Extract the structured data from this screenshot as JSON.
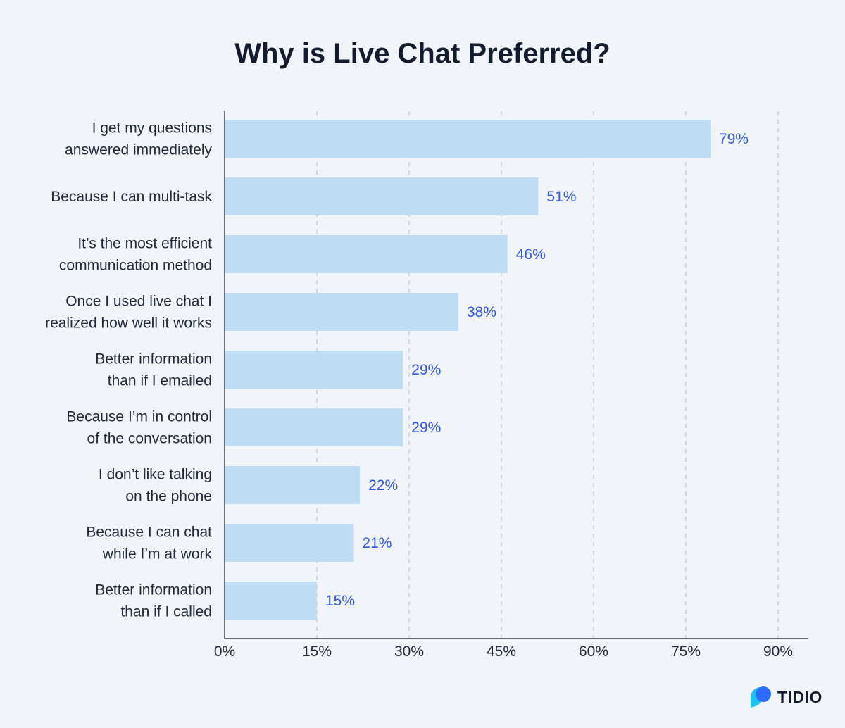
{
  "chart_data": {
    "type": "bar",
    "orientation": "horizontal",
    "title": "Why is Live Chat Preferred?",
    "categories": [
      [
        "I get my questions",
        "answered immediately"
      ],
      [
        "Because I can multi-task"
      ],
      [
        "It’s the most efficient",
        "communication method"
      ],
      [
        "Once I used live chat I",
        "realized how well it works"
      ],
      [
        "Better information",
        "than if I emailed"
      ],
      [
        "Because I’m in control",
        "of the conversation"
      ],
      [
        "I don’t like talking",
        "on the phone"
      ],
      [
        "Because I can chat",
        "while I’m at work"
      ],
      [
        "Better information",
        "than if I called"
      ]
    ],
    "values": [
      79,
      51,
      46,
      38,
      29,
      29,
      22,
      21,
      15
    ],
    "value_labels": [
      "79%",
      "51%",
      "46%",
      "38%",
      "29%",
      "29%",
      "22%",
      "21%",
      "15%"
    ],
    "xlim": [
      0,
      90
    ],
    "xticks": [
      0,
      15,
      30,
      45,
      60,
      75,
      90
    ],
    "xtick_labels": [
      "0%",
      "15%",
      "30%",
      "45%",
      "60%",
      "75%",
      "90%"
    ],
    "grid": "vertical-dashed",
    "bar_color": "#bfdcf5",
    "value_label_color": "#2f55e3"
  },
  "brand": {
    "name": "TIDIO",
    "logo_icon": "tidio-logo-icon",
    "colors": [
      "#2f6bff",
      "#19c3f3"
    ]
  }
}
